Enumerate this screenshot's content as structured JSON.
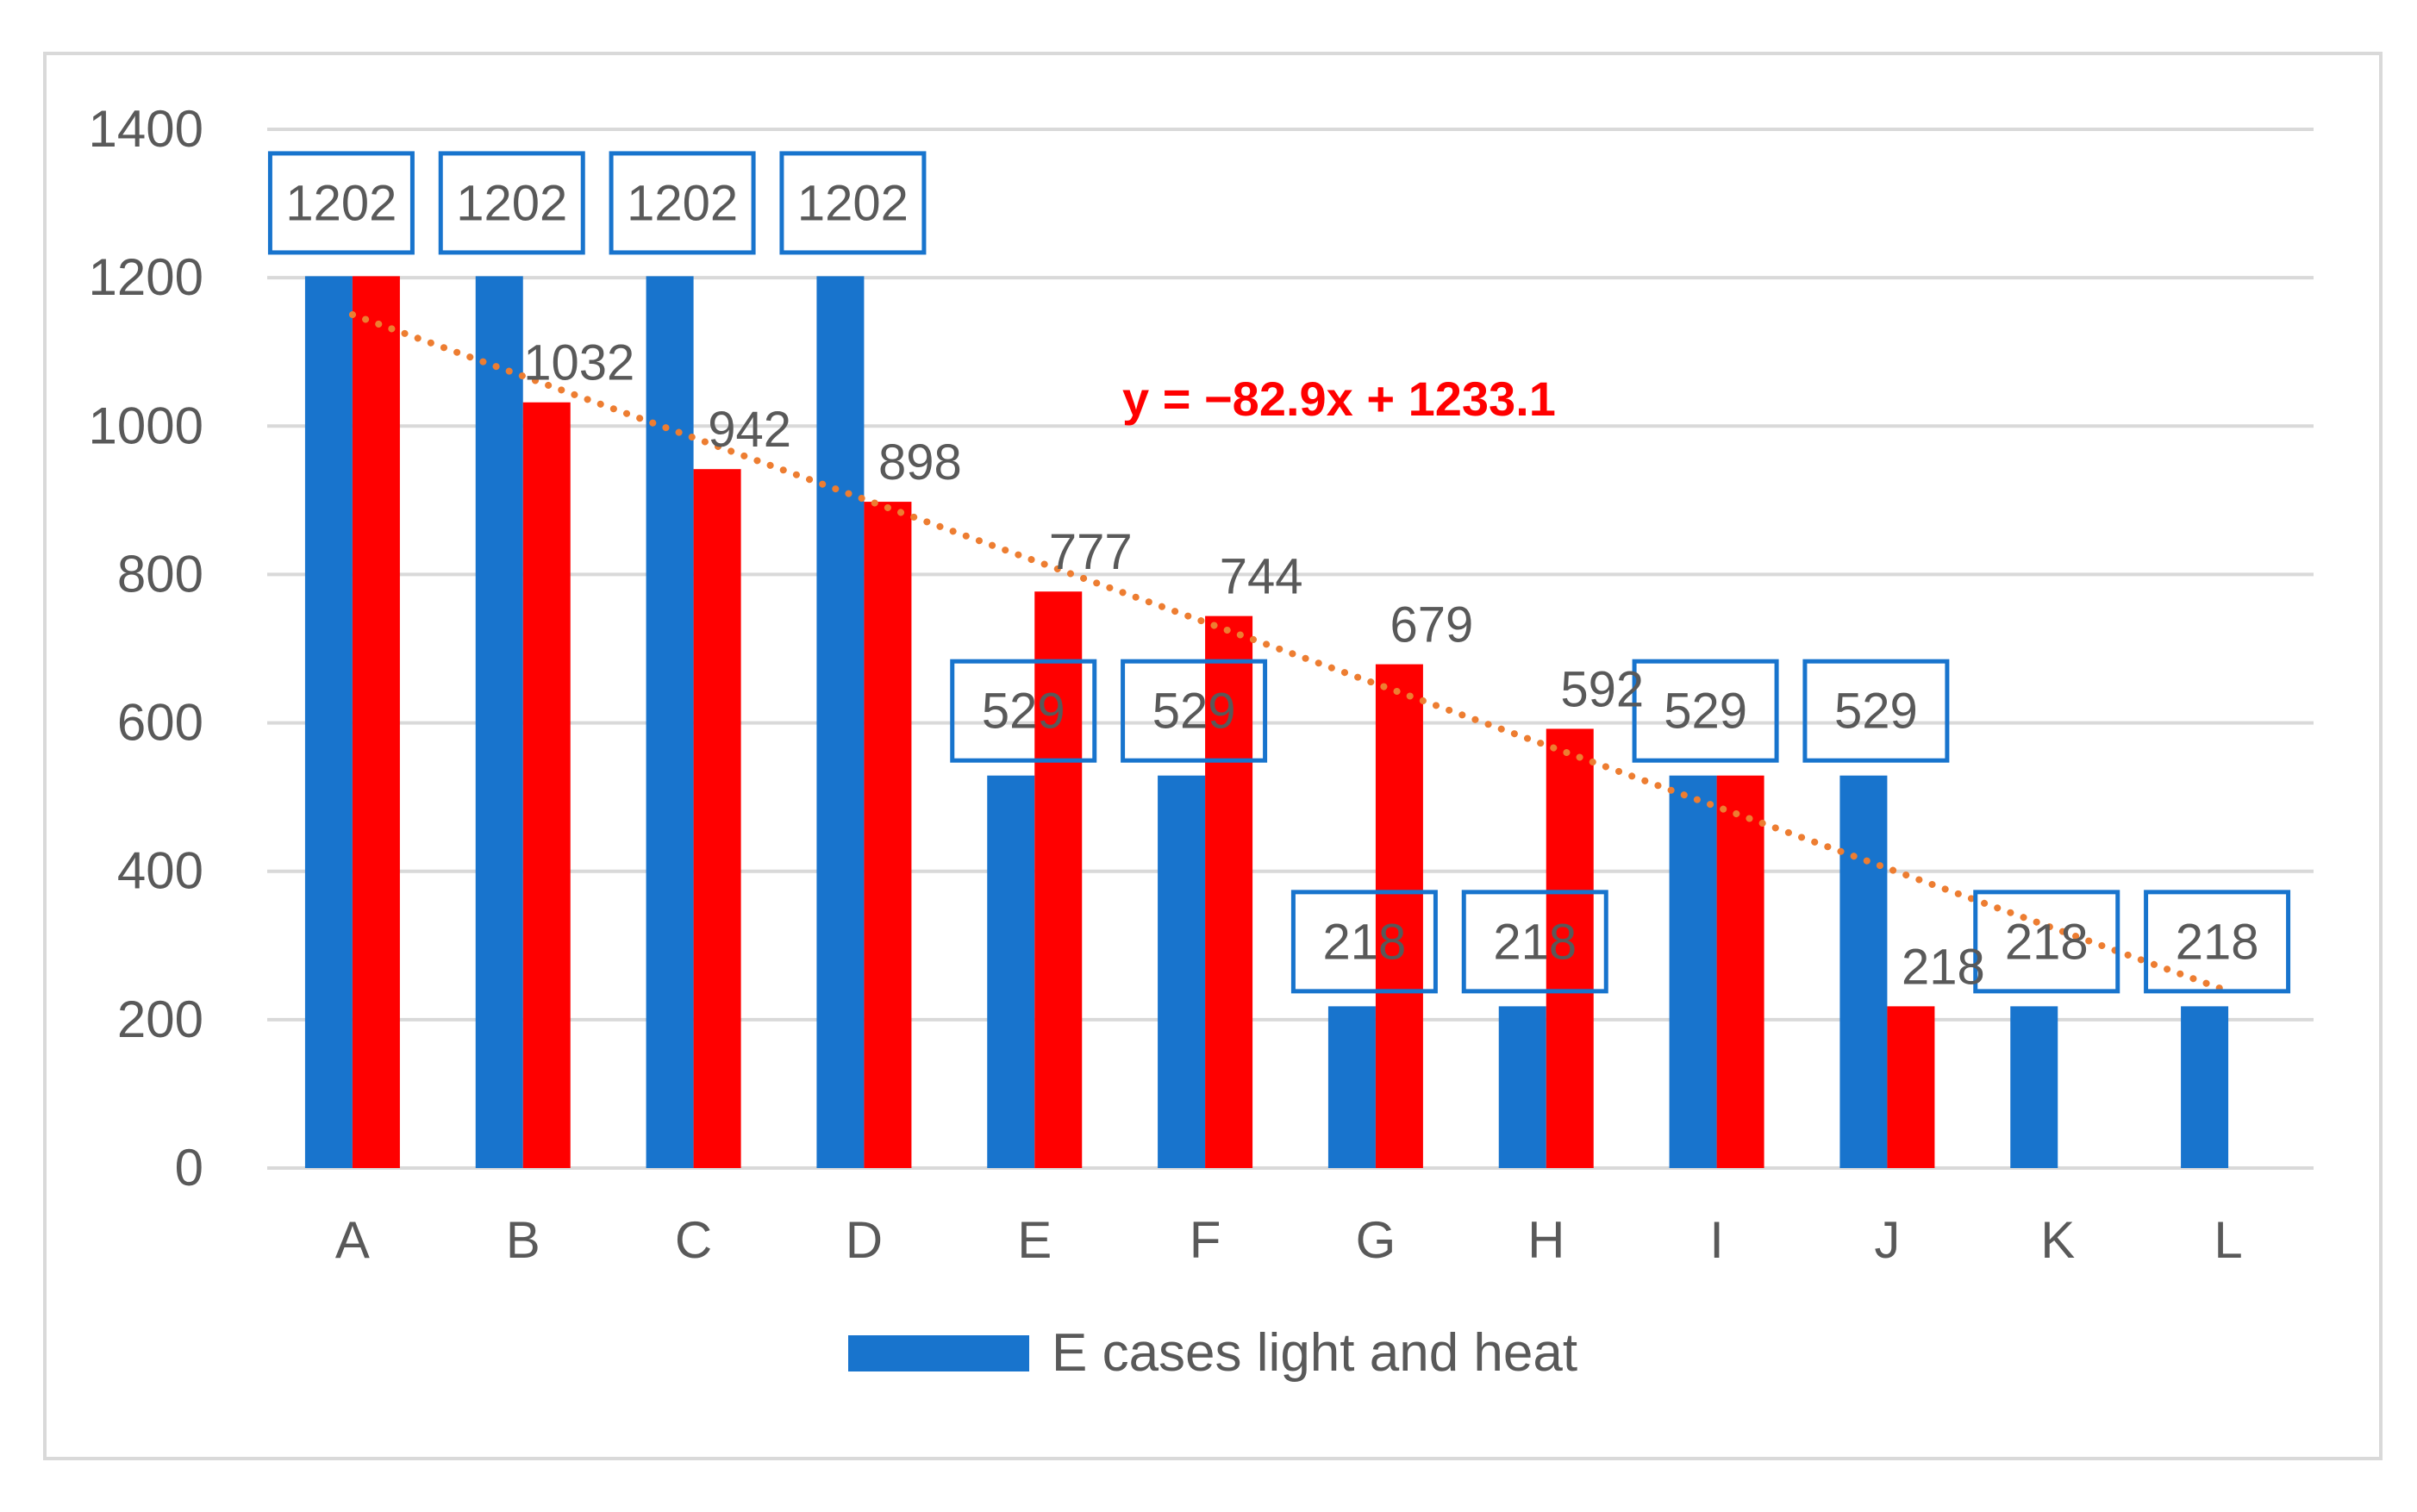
{
  "chart_data": {
    "type": "bar",
    "categories": [
      "A",
      "B",
      "C",
      "D",
      "E",
      "F",
      "G",
      "H",
      "I",
      "J",
      "K",
      "L"
    ],
    "series": [
      {
        "name": "E cases light and heat",
        "color": "#1874cd",
        "values": [
          1202,
          1202,
          1202,
          1202,
          529,
          529,
          218,
          218,
          529,
          529,
          218,
          218
        ]
      },
      {
        "name": "",
        "color": "#ff0000",
        "values": [
          1202,
          1032,
          942,
          898,
          777,
          744,
          679,
          592,
          529,
          218,
          0,
          0
        ]
      }
    ],
    "blue_box_labels": [
      "1202",
      "1202",
      "1202",
      "1202",
      "529",
      "529",
      "218",
      "218",
      "529",
      "529",
      "218",
      "218"
    ],
    "red_data_labels": [
      "1032",
      "942",
      "898",
      "777",
      "744",
      "679",
      "592",
      "218"
    ],
    "red_label_categories": [
      "B",
      "C",
      "D",
      "E",
      "F",
      "G",
      "H",
      "J"
    ],
    "trendline": {
      "slope": -82.9,
      "intercept": 1233.1,
      "color": "#ed7d31",
      "style": "dotted"
    },
    "equation_label": "y = −82.9x + 1233.1",
    "equation_color": "#ff0000",
    "ylim": [
      0,
      1400
    ],
    "yticks": [
      "0",
      "200",
      "400",
      "600",
      "800",
      "1000",
      "1200",
      "1400"
    ],
    "ytick_values": [
      0,
      200,
      400,
      600,
      800,
      1000,
      1200,
      1400
    ],
    "legend": {
      "position": "bottom",
      "entries": [
        "E cases light and heat"
      ]
    },
    "grid": true,
    "title": "",
    "xlabel": "",
    "ylabel": ""
  }
}
